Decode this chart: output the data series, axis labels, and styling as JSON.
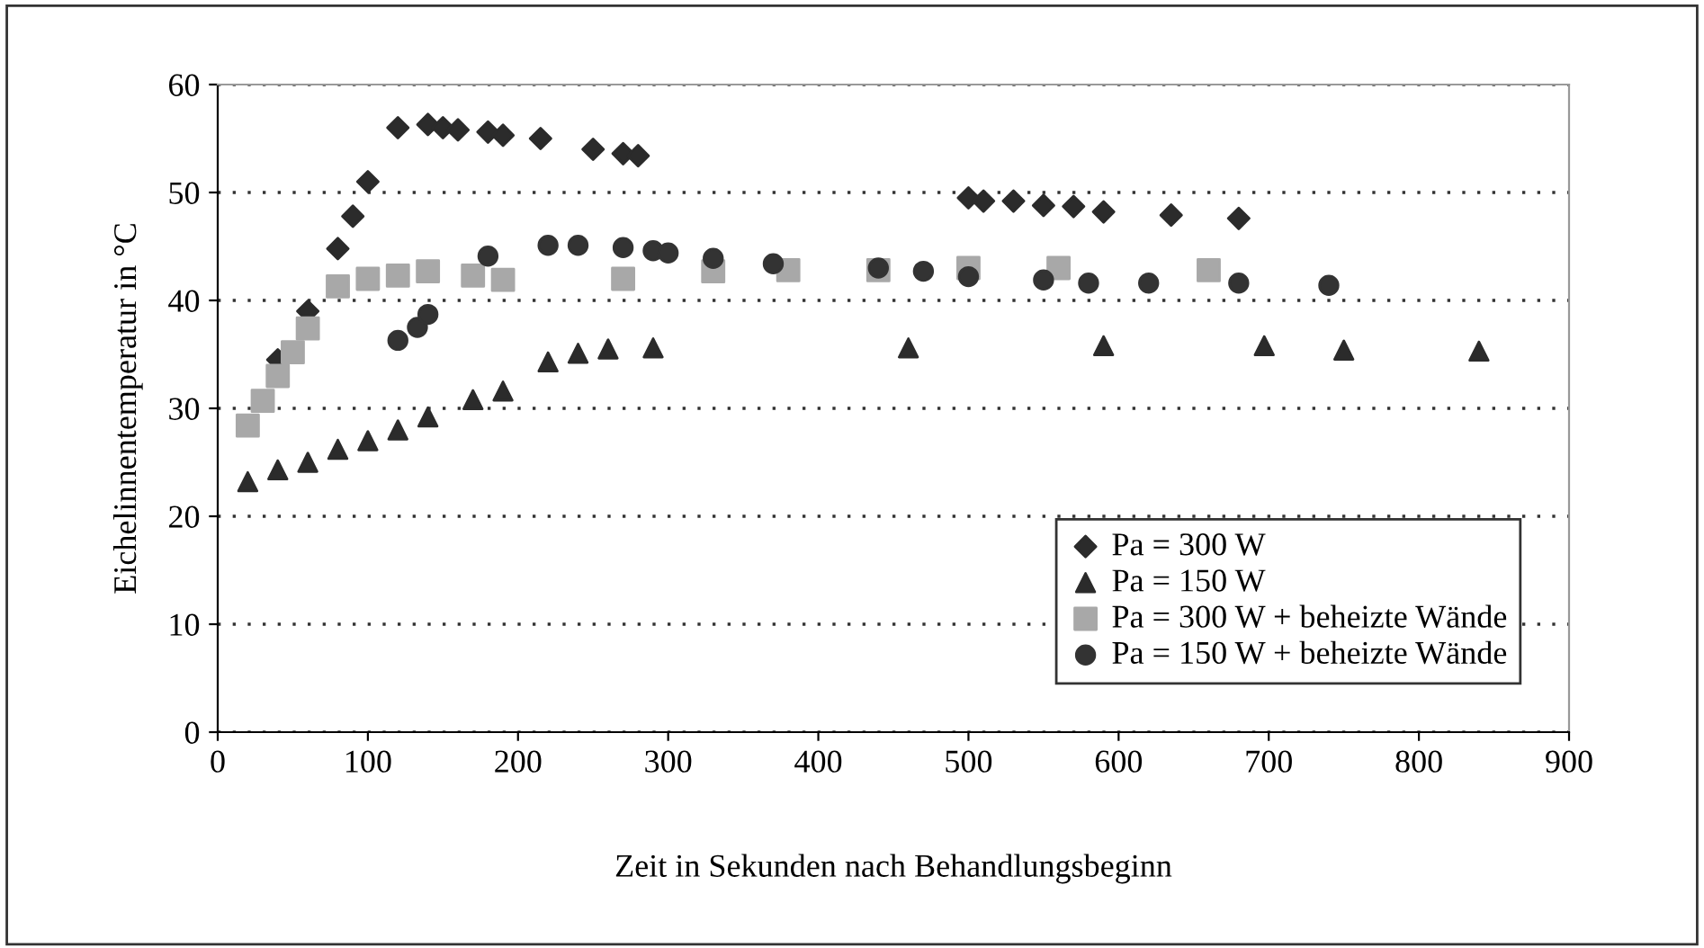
{
  "chart_data": {
    "type": "scatter",
    "xlabel": "Zeit in Sekunden nach Behandlungsbeginn",
    "ylabel": "Eichelinnentemperatur in °C",
    "xlim": [
      0,
      900
    ],
    "xticks": [
      0,
      100,
      200,
      300,
      400,
      500,
      600,
      700,
      800,
      900
    ],
    "ylim": [
      0,
      60
    ],
    "yticks": [
      0,
      10,
      20,
      30,
      40,
      50,
      60
    ],
    "grid": "y",
    "legend": "bottom right",
    "series": [
      {
        "name": "Pa = 300 W",
        "color": "#2b2b2b",
        "marker": "diamond",
        "x": [
          40,
          60,
          80,
          90,
          100,
          120,
          140,
          150,
          160,
          180,
          190,
          215,
          250,
          270,
          280,
          500,
          510,
          530,
          550,
          570,
          590,
          635,
          680
        ],
        "values": [
          34.5,
          39,
          44.8,
          47.8,
          51,
          56,
          56.3,
          56,
          55.8,
          55.6,
          55.3,
          55,
          54,
          53.6,
          53.4,
          49.5,
          49.2,
          49.2,
          48.8,
          48.7,
          48.2,
          47.9,
          47.6
        ]
      },
      {
        "name": "Pa = 150 W",
        "color": "#2b2b2b",
        "marker": "triangle",
        "x": [
          20,
          40,
          60,
          80,
          100,
          120,
          140,
          170,
          190,
          220,
          240,
          260,
          290,
          460,
          590,
          697,
          750,
          840
        ],
        "values": [
          23.2,
          24.3,
          25,
          26.2,
          27,
          28,
          29.2,
          30.8,
          31.6,
          34.3,
          35.1,
          35.5,
          35.6,
          35.6,
          35.8,
          35.8,
          35.4,
          35.3
        ]
      },
      {
        "name": "Pa = 300 W + beheizte Wände",
        "color": "#a8a8a8",
        "marker": "square",
        "x": [
          20,
          30,
          40,
          50,
          60,
          80,
          100,
          120,
          140,
          170,
          190,
          270,
          330,
          380,
          440,
          500,
          560,
          660
        ],
        "values": [
          28.4,
          30.7,
          33,
          35.2,
          37.4,
          41.3,
          42,
          42.3,
          42.7,
          42.3,
          41.9,
          42,
          42.7,
          42.8,
          42.8,
          43,
          43,
          42.8
        ]
      },
      {
        "name": "Pa = 150 W + beheizte Wände",
        "color": "#333333",
        "marker": "circle",
        "x": [
          120,
          133,
          140,
          180,
          220,
          240,
          270,
          290,
          300,
          330,
          370,
          440,
          470,
          500,
          550,
          580,
          620,
          680,
          740
        ],
        "values": [
          36.3,
          37.5,
          38.7,
          44.1,
          45.1,
          45.1,
          44.9,
          44.6,
          44.4,
          43.9,
          43.4,
          43,
          42.7,
          42.2,
          41.9,
          41.6,
          41.6,
          41.6,
          41.4
        ]
      }
    ]
  }
}
